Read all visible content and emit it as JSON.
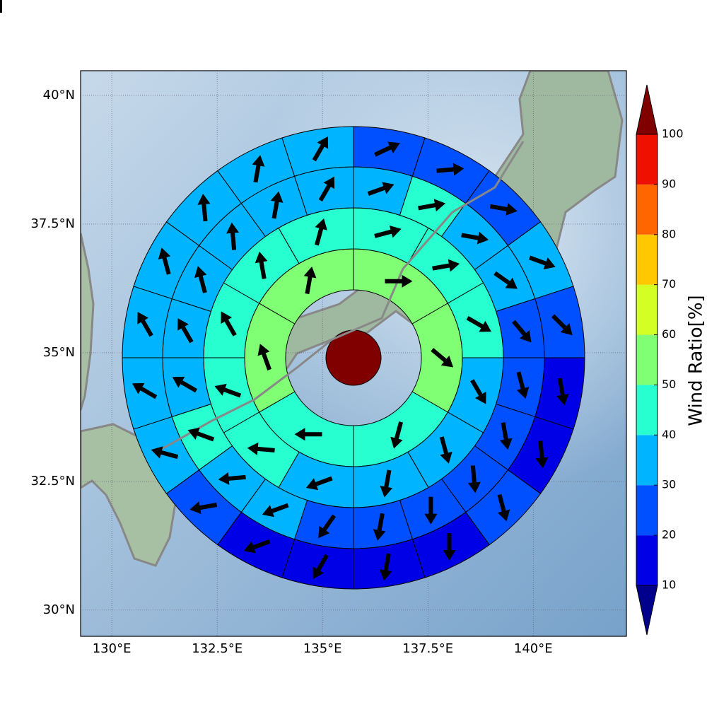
{
  "chart_data": {
    "type": "polar-sector-map",
    "xlim": [
      129.26,
      142.21
    ],
    "ylim": [
      29.49,
      40.48
    ],
    "xticks": [
      {
        "value": 130,
        "label": "130°E"
      },
      {
        "value": 132.5,
        "label": "132.5°E"
      },
      {
        "value": 135,
        "label": "135°E"
      },
      {
        "value": 137.5,
        "label": "137.5°E"
      },
      {
        "value": 140,
        "label": "140°E"
      }
    ],
    "yticks": [
      {
        "value": 30,
        "label": "30°N"
      },
      {
        "value": 32.5,
        "label": "32.5°N"
      },
      {
        "value": 35,
        "label": "35°N"
      },
      {
        "value": 37.5,
        "label": "37.5°N"
      },
      {
        "value": 40,
        "label": "40°N"
      }
    ],
    "grid": true,
    "center_value": 100,
    "rings": [
      {
        "values": [
          55,
          55,
          45,
          45,
          55,
          55
        ],
        "directions": [
          90,
          130,
          195,
          270,
          340,
          10
        ]
      },
      {
        "values": [
          45,
          45,
          45,
          35,
          35,
          35,
          35,
          45,
          45,
          45,
          45,
          45
        ],
        "directions": [
          75,
          80,
          120,
          150,
          165,
          190,
          250,
          275,
          290,
          330,
          350,
          15
        ]
      },
      {
        "values": [
          35,
          45,
          35,
          35,
          25,
          25,
          25,
          25,
          25,
          25,
          25,
          35,
          35,
          45,
          35,
          35,
          35,
          35,
          35,
          35
        ],
        "directions": [
          70,
          80,
          100,
          125,
          140,
          165,
          170,
          175,
          180,
          190,
          215,
          250,
          265,
          290,
          300,
          330,
          345,
          355,
          10,
          30
        ]
      },
      {
        "values": [
          25,
          25,
          25,
          35,
          25,
          15,
          15,
          25,
          15,
          15,
          15,
          15,
          25,
          35,
          35,
          35,
          35,
          35,
          35,
          35
        ],
        "directions": [
          65,
          85,
          100,
          110,
          135,
          170,
          175,
          165,
          180,
          190,
          210,
          250,
          260,
          285,
          300,
          330,
          345,
          355,
          10,
          30
        ]
      },
      {
        "values": [
          25,
          25,
          25,
          35,
          25,
          15,
          15,
          15,
          15,
          15,
          15,
          15,
          15,
          35,
          35,
          25,
          35,
          35,
          35,
          35
        ],
        "directions": [
          65,
          80,
          100,
          120,
          135,
          165,
          175,
          170,
          170,
          190,
          205,
          240,
          270,
          295,
          310,
          330,
          355,
          5,
          15,
          40
        ]
      }
    ],
    "colorbar": {
      "label": "Wind Ratio[%]",
      "levels": [
        10,
        20,
        30,
        40,
        50,
        60,
        70,
        80,
        90,
        100
      ],
      "colors": [
        "#00008c",
        "#0000e6",
        "#0050ff",
        "#00b4ff",
        "#28ffd0",
        "#80ff74",
        "#d4ff24",
        "#ffc800",
        "#ff6600",
        "#f01000",
        "#800000"
      ],
      "extend": "both"
    }
  }
}
